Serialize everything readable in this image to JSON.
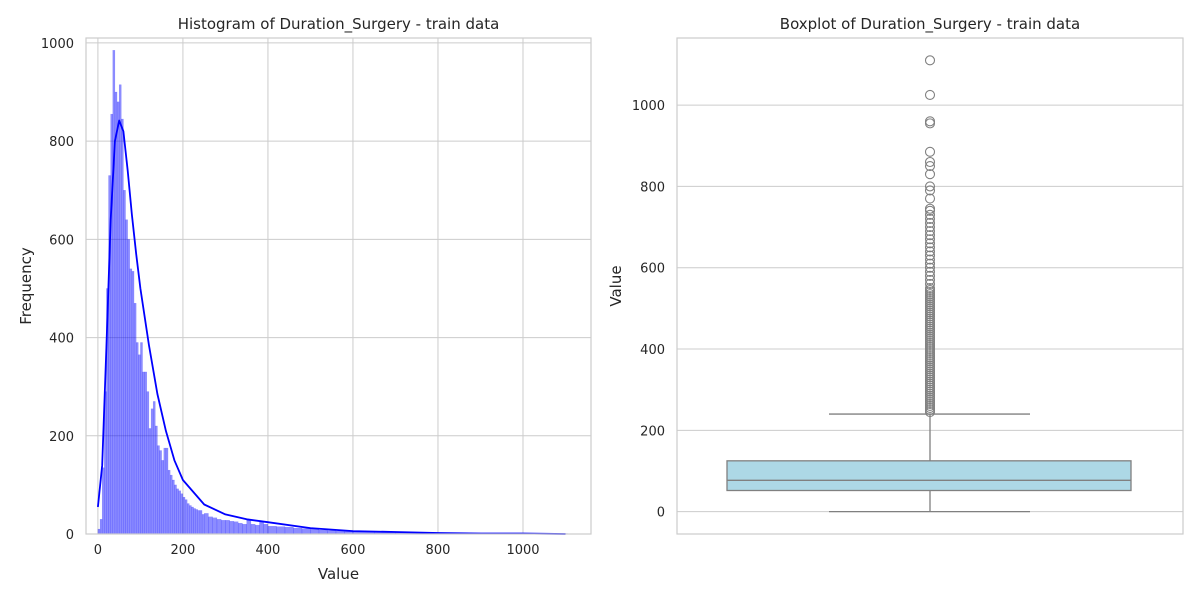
{
  "chart_data": [
    {
      "type": "bar",
      "title": "Histogram of Duration_Surgery - train data",
      "xlabel": "Value",
      "ylabel": "Frequency",
      "xlim": [
        -28,
        1160
      ],
      "ylim": [
        0,
        1010
      ],
      "xticks": [
        0,
        200,
        400,
        600,
        800,
        1000
      ],
      "yticks": [
        0,
        200,
        400,
        600,
        800,
        1000
      ],
      "grid": true,
      "bar_color": "#0000ff",
      "bar_alpha": 0.45,
      "kde_color": "#0000ff",
      "bin_width": 5,
      "bins_x": [
        0,
        5,
        10,
        15,
        20,
        25,
        30,
        35,
        40,
        45,
        50,
        55,
        60,
        65,
        70,
        75,
        80,
        85,
        90,
        95,
        100,
        105,
        110,
        115,
        120,
        125,
        130,
        135,
        140,
        145,
        150,
        155,
        160,
        165,
        170,
        175,
        180,
        185,
        190,
        195,
        200,
        205,
        210,
        215,
        220,
        225,
        230,
        235,
        240,
        245,
        250,
        260,
        270,
        280,
        290,
        300,
        310,
        320,
        330,
        340,
        350,
        360,
        370,
        380,
        390,
        400,
        420,
        440,
        460,
        480,
        500,
        520,
        540,
        560,
        580,
        600,
        650,
        700,
        750,
        800,
        850,
        900,
        1000,
        1100
      ],
      "bins_freq": [
        10,
        30,
        135,
        290,
        500,
        730,
        855,
        985,
        900,
        880,
        915,
        845,
        700,
        640,
        600,
        540,
        535,
        470,
        390,
        365,
        390,
        330,
        330,
        290,
        215,
        255,
        270,
        220,
        180,
        170,
        150,
        175,
        175,
        130,
        120,
        110,
        100,
        92,
        88,
        82,
        75,
        70,
        62,
        58,
        55,
        52,
        50,
        48,
        48,
        40,
        42,
        35,
        33,
        30,
        28,
        28,
        26,
        25,
        22,
        20,
        30,
        20,
        18,
        26,
        20,
        16,
        15,
        14,
        12,
        11,
        10,
        8,
        7,
        6,
        5,
        5,
        4,
        3,
        3,
        2,
        2,
        1,
        1,
        1
      ],
      "kde_x": [
        0,
        10,
        20,
        30,
        40,
        50,
        60,
        70,
        80,
        90,
        100,
        120,
        140,
        160,
        180,
        200,
        250,
        300,
        350,
        400,
        500,
        600,
        700,
        800,
        900,
        1000,
        1100
      ],
      "kde_y": [
        55,
        140,
        380,
        640,
        800,
        842,
        820,
        740,
        650,
        570,
        500,
        385,
        285,
        210,
        150,
        110,
        60,
        40,
        30,
        24,
        12,
        6,
        4,
        2,
        1,
        1,
        0
      ]
    },
    {
      "type": "box",
      "title": "Boxplot of Duration_Surgery - train data",
      "xlabel": "",
      "ylabel": "Value",
      "ylim": [
        -55,
        1165
      ],
      "yticks": [
        0,
        200,
        400,
        600,
        800,
        1000
      ],
      "grid": true,
      "box_color": "#add8e6",
      "line_color": "#808080",
      "whisker_low": 0,
      "q1": 52,
      "median": 77,
      "q3": 125,
      "whisker_high": 240,
      "outliers": [
        245,
        250,
        255,
        260,
        265,
        270,
        275,
        280,
        285,
        290,
        295,
        300,
        305,
        310,
        315,
        320,
        325,
        330,
        335,
        340,
        345,
        350,
        355,
        360,
        365,
        370,
        375,
        380,
        385,
        390,
        395,
        400,
        405,
        410,
        415,
        420,
        425,
        430,
        435,
        440,
        445,
        450,
        455,
        460,
        465,
        470,
        475,
        480,
        485,
        490,
        495,
        500,
        505,
        510,
        515,
        520,
        525,
        530,
        535,
        540,
        545,
        550,
        560,
        570,
        580,
        590,
        600,
        610,
        620,
        630,
        640,
        650,
        660,
        670,
        680,
        690,
        700,
        710,
        720,
        730,
        740,
        745,
        770,
        790,
        800,
        830,
        850,
        860,
        885,
        955,
        960,
        1025,
        1110
      ]
    }
  ]
}
